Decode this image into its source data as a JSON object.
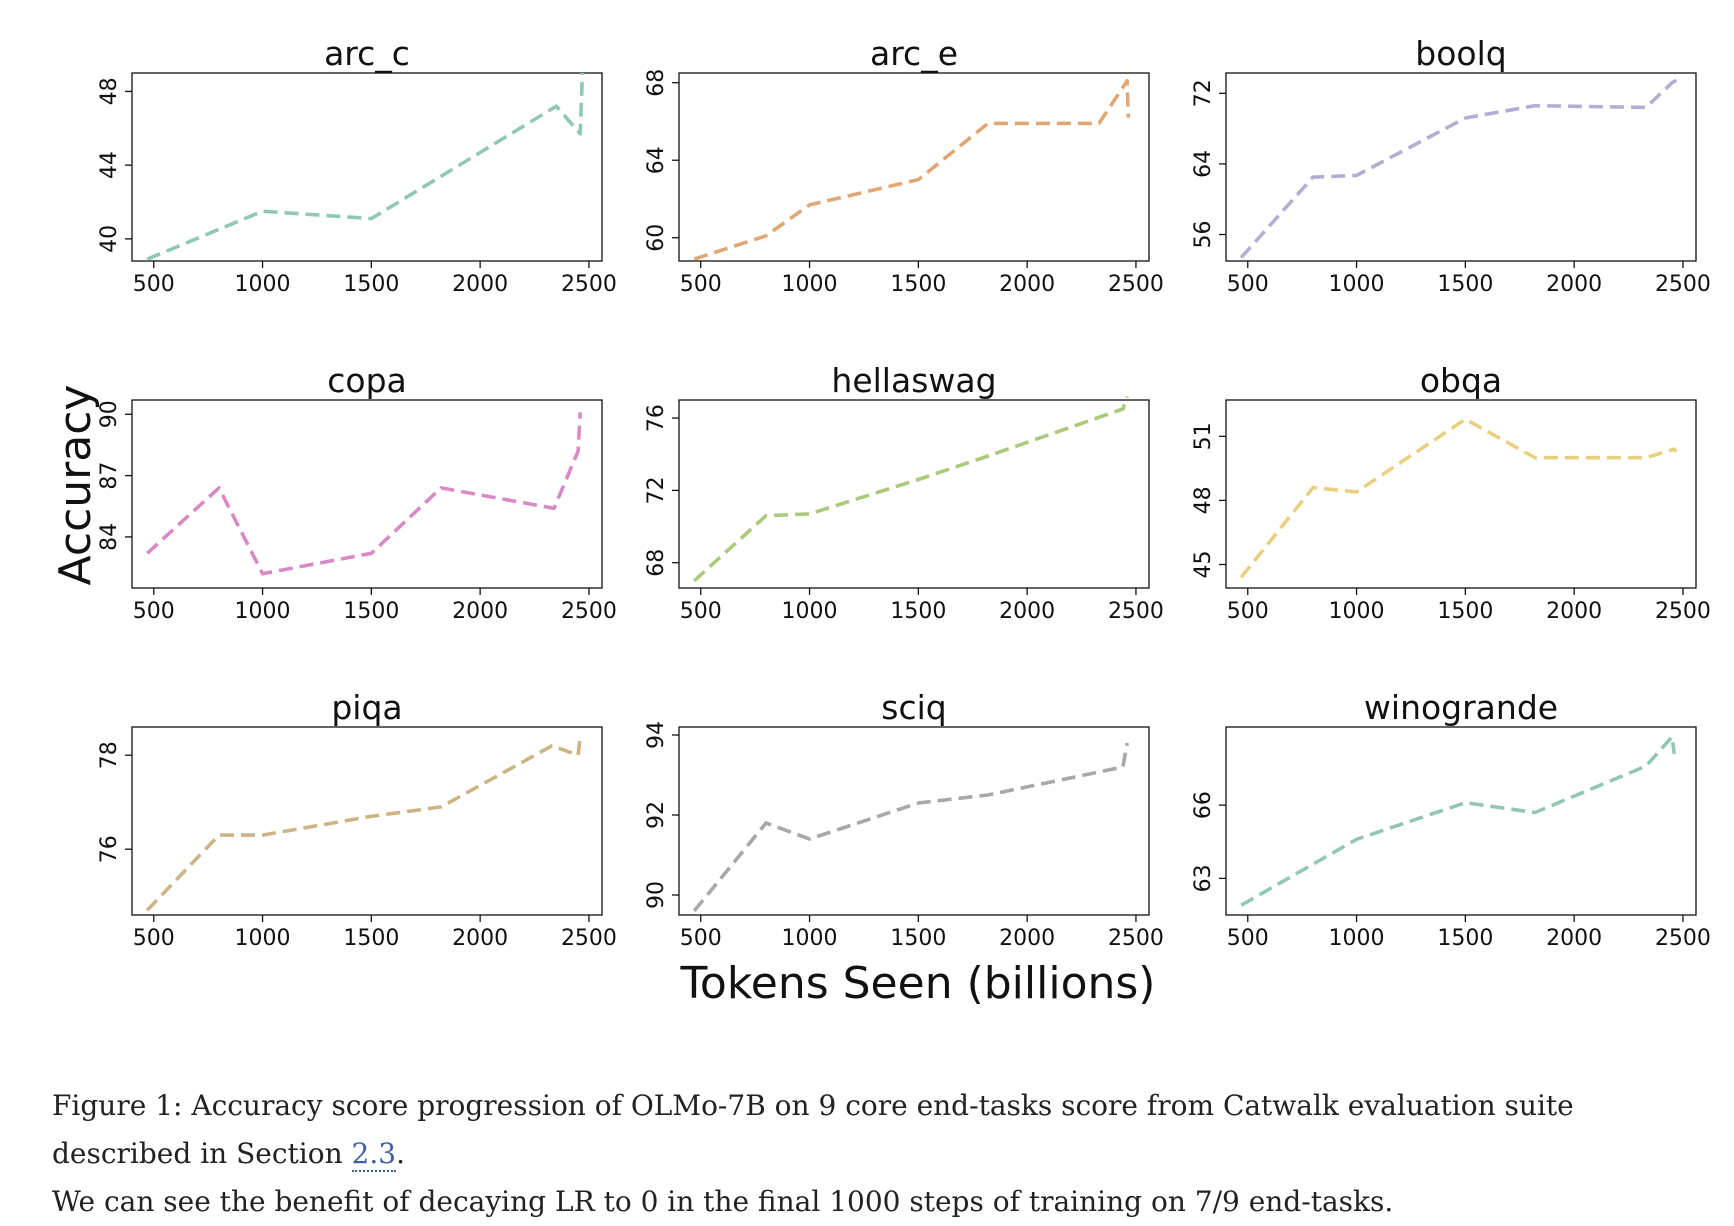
{
  "chart_data": {
    "type": "line",
    "layout": "3x3 grid of subplots",
    "line_style": "dashed",
    "xlabel": "Tokens Seen (billions)",
    "ylabel": "Accuracy",
    "x_ticks": [
      500,
      1000,
      1500,
      2000,
      2500
    ],
    "xlim": [
      400,
      2560
    ],
    "panels": [
      {
        "title": "arc_c",
        "color": "#8fc9b3",
        "y_ticks": [
          40,
          44,
          48
        ],
        "ylim": [
          38.8,
          49
        ],
        "x": [
          470,
          1000,
          1500,
          2350,
          2460,
          2470
        ],
        "y": [
          38.9,
          41.5,
          41.1,
          47.2,
          45.7,
          49
        ]
      },
      {
        "title": "arc_e",
        "color": "#e0a774",
        "y_ticks": [
          60,
          64,
          68
        ],
        "ylim": [
          58.8,
          68.5
        ],
        "x": [
          470,
          800,
          1000,
          1500,
          1820,
          2330,
          2460,
          2465
        ],
        "y": [
          58.9,
          60.1,
          61.7,
          63.0,
          65.9,
          65.9,
          68.1,
          66.2
        ],
        "y_tick_positions_note": "estimated"
      },
      {
        "title": "boolq",
        "color": "#b5add4",
        "y_ticks": [
          56,
          64,
          72
        ],
        "ylim": [
          53,
          74.3
        ],
        "x": [
          470,
          800,
          1000,
          1500,
          1820,
          2330,
          2450,
          2470
        ],
        "y": [
          53.4,
          62.5,
          62.7,
          69.2,
          70.6,
          70.4,
          73.2,
          73.5
        ]
      },
      {
        "title": "copa",
        "color": "#d98ac3",
        "y_ticks": [
          84,
          87,
          90
        ],
        "ylim": [
          81.5,
          90.7
        ],
        "x": [
          470,
          800,
          1000,
          1500,
          1820,
          2340,
          2450,
          2460
        ],
        "y": [
          83.2,
          86.4,
          82.2,
          83.2,
          86.4,
          85.4,
          88.2,
          90.1
        ]
      },
      {
        "title": "hellaswag",
        "color": "#acc97a",
        "y_ticks": [
          68,
          72,
          76
        ],
        "ylim": [
          66.6,
          77
        ],
        "x": [
          470,
          800,
          1000,
          1500,
          1820,
          2440,
          2460
        ],
        "y": [
          67.0,
          70.6,
          70.7,
          72.6,
          73.9,
          76.5,
          77.2
        ]
      },
      {
        "title": "obqa",
        "color": "#e8d07f",
        "y_ticks": [
          45,
          48,
          51
        ],
        "ylim": [
          43.9,
          52.7
        ],
        "x": [
          470,
          800,
          1000,
          1500,
          1820,
          2330,
          2460,
          2470
        ],
        "y": [
          44.4,
          48.6,
          48.4,
          51.8,
          50.0,
          50.0,
          50.4,
          50.3
        ]
      },
      {
        "title": "piqa",
        "color": "#cdb486",
        "y_ticks": [
          76,
          78
        ],
        "ylim": [
          74.6,
          78.6
        ],
        "x": [
          470,
          800,
          1000,
          1500,
          1820,
          2330,
          2450,
          2460
        ],
        "y": [
          74.7,
          76.3,
          76.3,
          76.7,
          76.9,
          78.2,
          78.0,
          78.4
        ]
      },
      {
        "title": "sciq",
        "color": "#a8a8a8",
        "y_ticks": [
          90,
          92,
          94
        ],
        "ylim": [
          89.5,
          94.2
        ],
        "x": [
          470,
          800,
          1000,
          1500,
          1820,
          2440,
          2460
        ],
        "y": [
          89.6,
          91.8,
          91.4,
          92.3,
          92.5,
          93.2,
          93.8
        ]
      },
      {
        "title": "winogrande",
        "color": "#93c7b1",
        "y_ticks": [
          63,
          66
        ],
        "ylim": [
          61.5,
          69.2
        ],
        "x": [
          470,
          1000,
          1500,
          1820,
          2330,
          2450,
          2460
        ],
        "y": [
          61.9,
          64.6,
          66.1,
          65.7,
          67.6,
          68.8,
          68.1
        ]
      }
    ]
  },
  "caption": {
    "text": "Figure 1: Accuracy score progression of OLMo-7B on 9 core end-tasks score from Catwalk evaluation suite described in Section ",
    "ref": "2.3",
    "text_end": ".",
    "line2": "We can see the benefit of decaying LR to 0 in the final 1000 steps of training on 7/9 end-tasks."
  }
}
